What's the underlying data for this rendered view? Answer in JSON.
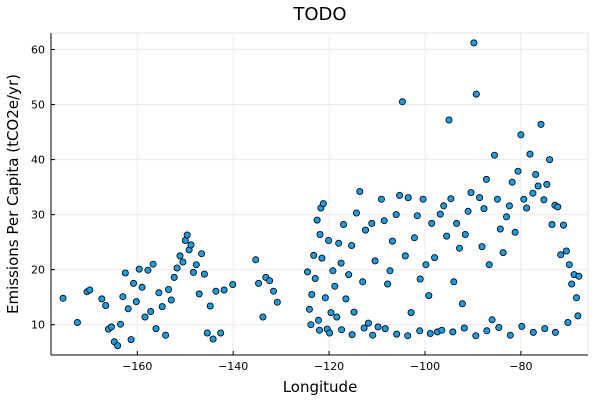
{
  "chart_data": {
    "type": "scatter",
    "title": "TODO",
    "xlabel": "Longitude",
    "ylabel": "Emissions Per Capita (tCO2e/yr)",
    "xlim": [
      -178,
      -66
    ],
    "ylim": [
      4.5,
      63
    ],
    "xticks": [
      -160,
      -140,
      -120,
      -100,
      -80
    ],
    "xtick_labels": [
      "−160",
      "−140",
      "−120",
      "−100",
      "−80"
    ],
    "yticks": [
      10,
      20,
      30,
      40,
      50,
      60
    ],
    "ytick_labels": [
      "10",
      "20",
      "30",
      "40",
      "50",
      "60"
    ],
    "grid": true,
    "legend": "none",
    "marker_color": "#1e9bde",
    "marker_edge_color": "#000000",
    "series": [
      {
        "points": [
          [
            -175.5,
            14.8
          ],
          [
            -172.5,
            10.4
          ],
          [
            -170.5,
            16.0
          ],
          [
            -169.9,
            16.3
          ],
          [
            -167.4,
            14.7
          ],
          [
            -166.6,
            13.5
          ],
          [
            -166.0,
            9.2
          ],
          [
            -165.4,
            9.6
          ],
          [
            -164.8,
            6.9
          ],
          [
            -164.1,
            6.2
          ],
          [
            -163.5,
            10.1
          ],
          [
            -163.0,
            15.1
          ],
          [
            -162.5,
            19.4
          ],
          [
            -161.9,
            12.9
          ],
          [
            -161.3,
            7.3
          ],
          [
            -160.8,
            17.5
          ],
          [
            -160.2,
            14.2
          ],
          [
            -159.6,
            20.1
          ],
          [
            -159.0,
            16.8
          ],
          [
            -158.4,
            11.4
          ],
          [
            -157.8,
            19.9
          ],
          [
            -157.2,
            12.4
          ],
          [
            -156.7,
            21.0
          ],
          [
            -156.1,
            9.3
          ],
          [
            -155.5,
            15.8
          ],
          [
            -154.8,
            13.3
          ],
          [
            -154.1,
            8.1
          ],
          [
            -153.5,
            16.4
          ],
          [
            -152.9,
            14.5
          ],
          [
            -152.3,
            18.6
          ],
          [
            -151.7,
            20.3
          ],
          [
            -151.1,
            22.5
          ],
          [
            -150.5,
            21.4
          ],
          [
            -150.0,
            25.3
          ],
          [
            -149.6,
            26.3
          ],
          [
            -149.2,
            23.6
          ],
          [
            -148.8,
            24.5
          ],
          [
            -148.3,
            19.5
          ],
          [
            -147.7,
            20.9
          ],
          [
            -147.1,
            15.6
          ],
          [
            -146.6,
            22.9
          ],
          [
            -146.0,
            19.2
          ],
          [
            -145.4,
            8.5
          ],
          [
            -144.8,
            13.4
          ],
          [
            -144.2,
            7.4
          ],
          [
            -143.6,
            16.1
          ],
          [
            -142.6,
            8.5
          ],
          [
            -141.9,
            16.3
          ],
          [
            -140.1,
            17.3
          ],
          [
            -135.3,
            21.8
          ],
          [
            -134.7,
            17.5
          ],
          [
            -133.8,
            11.4
          ],
          [
            -133.2,
            18.6
          ],
          [
            -132.4,
            18.0
          ],
          [
            -131.6,
            16.1
          ],
          [
            -130.8,
            14.1
          ],
          [
            -124.5,
            19.6
          ],
          [
            -124.1,
            12.8
          ],
          [
            -123.6,
            15.5
          ],
          [
            -123.2,
            22.6
          ],
          [
            -122.9,
            18.4
          ],
          [
            -122.5,
            29.0
          ],
          [
            -122.2,
            10.8
          ],
          [
            -121.9,
            26.4
          ],
          [
            -121.7,
            31.2
          ],
          [
            -121.5,
            22.1
          ],
          [
            -121.2,
            32.0
          ],
          [
            -120.8,
            14.9
          ],
          [
            -120.4,
            9.2
          ],
          [
            -120.1,
            25.3
          ],
          [
            -119.6,
            12.2
          ],
          [
            -119.2,
            19.8
          ],
          [
            -118.8,
            17.0
          ],
          [
            -118.4,
            11.4
          ],
          [
            -118.0,
            24.8
          ],
          [
            -117.5,
            21.2
          ],
          [
            -117.0,
            28.2
          ],
          [
            -116.5,
            14.7
          ],
          [
            -115.9,
            19.1
          ],
          [
            -115.3,
            24.4
          ],
          [
            -114.8,
            12.3
          ],
          [
            -114.3,
            30.3
          ],
          [
            -113.6,
            34.2
          ],
          [
            -113.0,
            17.8
          ],
          [
            -112.4,
            27.2
          ],
          [
            -111.8,
            10.3
          ],
          [
            -111.1,
            28.4
          ],
          [
            -110.4,
            21.6
          ],
          [
            -109.8,
            9.6
          ],
          [
            -109.1,
            32.8
          ],
          [
            -108.5,
            28.9
          ],
          [
            -107.8,
            17.4
          ],
          [
            -107.3,
            19.8
          ],
          [
            -106.8,
            25.2
          ],
          [
            -106.0,
            30.0
          ],
          [
            -105.3,
            33.5
          ],
          [
            -104.7,
            50.5
          ],
          [
            -104.1,
            22.5
          ],
          [
            -103.5,
            33.1
          ],
          [
            -102.9,
            12.2
          ],
          [
            -102.2,
            25.8
          ],
          [
            -101.6,
            29.8
          ],
          [
            -101.0,
            18.3
          ],
          [
            -100.4,
            32.8
          ],
          [
            -99.8,
            20.9
          ],
          [
            -99.2,
            15.3
          ],
          [
            -98.6,
            28.4
          ],
          [
            -98.0,
            22.2
          ],
          [
            -97.4,
            8.7
          ],
          [
            -96.8,
            30.1
          ],
          [
            -96.1,
            31.6
          ],
          [
            -95.5,
            26.1
          ],
          [
            -95.0,
            47.2
          ],
          [
            -94.6,
            32.9
          ],
          [
            -94.0,
            17.8
          ],
          [
            -93.4,
            28.4
          ],
          [
            -92.8,
            23.9
          ],
          [
            -92.2,
            13.8
          ],
          [
            -91.6,
            26.4
          ],
          [
            -91.0,
            30.6
          ],
          [
            -90.4,
            34.0
          ],
          [
            -89.8,
            61.2
          ],
          [
            -89.3,
            51.9
          ],
          [
            -88.6,
            33.1
          ],
          [
            -88.1,
            24.2
          ],
          [
            -87.7,
            31.1
          ],
          [
            -87.2,
            36.4
          ],
          [
            -86.6,
            20.9
          ],
          [
            -86.0,
            10.9
          ],
          [
            -85.5,
            40.8
          ],
          [
            -84.9,
            32.8
          ],
          [
            -84.3,
            27.4
          ],
          [
            -83.7,
            23.1
          ],
          [
            -83.0,
            29.6
          ],
          [
            -82.4,
            31.6
          ],
          [
            -81.8,
            35.9
          ],
          [
            -81.2,
            26.8
          ],
          [
            -80.6,
            37.9
          ],
          [
            -80.0,
            44.5
          ],
          [
            -79.4,
            32.8
          ],
          [
            -78.8,
            31.2
          ],
          [
            -78.1,
            41.0
          ],
          [
            -77.5,
            33.9
          ],
          [
            -76.9,
            37.3
          ],
          [
            -76.4,
            35.2
          ],
          [
            -75.8,
            46.4
          ],
          [
            -75.2,
            32.7
          ],
          [
            -74.6,
            35.5
          ],
          [
            -74.0,
            40.0
          ],
          [
            -73.5,
            28.2
          ],
          [
            -72.9,
            31.7
          ],
          [
            -72.3,
            31.4
          ],
          [
            -71.7,
            22.7
          ],
          [
            -71.1,
            28.1
          ],
          [
            -70.5,
            23.4
          ],
          [
            -69.9,
            20.9
          ],
          [
            -69.4,
            17.4
          ],
          [
            -68.9,
            19.1
          ],
          [
            -68.4,
            14.9
          ],
          [
            -67.9,
            18.8
          ],
          [
            -123.8,
            10.0
          ],
          [
            -122.0,
            9.0
          ],
          [
            -119.9,
            8.5
          ],
          [
            -117.4,
            9.1
          ],
          [
            -115.2,
            8.2
          ],
          [
            -112.7,
            9.4
          ],
          [
            -110.9,
            8.1
          ],
          [
            -108.3,
            9.3
          ],
          [
            -105.9,
            8.3
          ],
          [
            -103.6,
            8.0
          ],
          [
            -101.1,
            8.9
          ],
          [
            -98.9,
            8.4
          ],
          [
            -96.5,
            9.0
          ],
          [
            -94.2,
            8.7
          ],
          [
            -91.8,
            9.4
          ],
          [
            -89.4,
            8.0
          ],
          [
            -87.1,
            8.9
          ],
          [
            -84.6,
            9.5
          ],
          [
            -82.2,
            8.1
          ],
          [
            -79.8,
            9.7
          ],
          [
            -77.4,
            8.6
          ],
          [
            -75.0,
            9.3
          ],
          [
            -72.8,
            8.6
          ],
          [
            -70.2,
            10.4
          ],
          [
            -68.1,
            11.6
          ]
        ]
      }
    ]
  }
}
